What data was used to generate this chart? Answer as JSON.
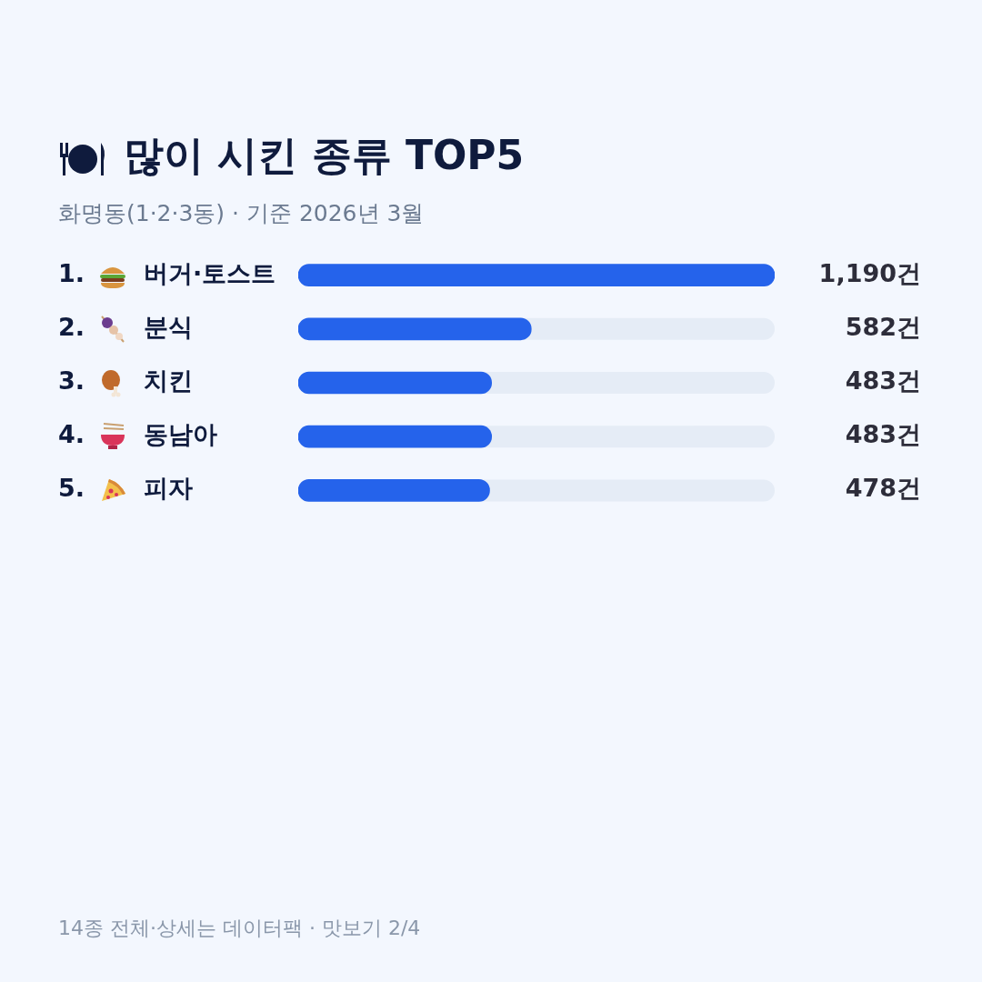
{
  "chart_data": {
    "type": "bar",
    "orientation": "horizontal",
    "title": "많이 시킨 종류 TOP5",
    "subtitle": "화명동(1·2·3동) · 기준 2026년 3월",
    "categories": [
      "1. 버거·토스트",
      "2. 분식",
      "3. 치킨",
      "4. 동남아",
      "5. 피자"
    ],
    "values": [
      1190,
      582,
      483,
      483,
      478
    ],
    "color": "#2563eb",
    "value_labels": [
      "1,190건",
      "582건",
      "483건",
      "483건",
      "478건"
    ],
    "annotations": [
      "14종 전체·상세는 데이터팩 · 맛보기 2/4"
    ]
  }
}
